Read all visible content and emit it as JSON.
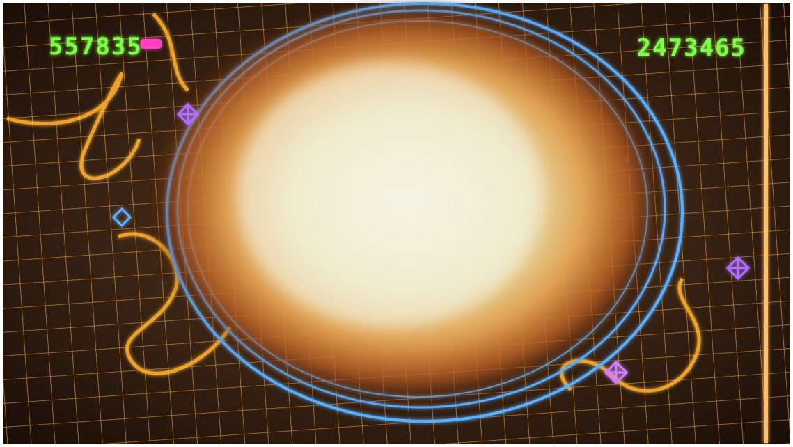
{
  "hud": {
    "player1_score": "557835",
    "player2_score": "2473465"
  }
}
